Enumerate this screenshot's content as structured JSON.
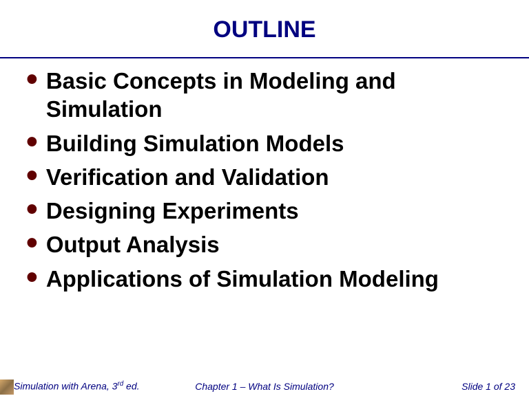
{
  "title": {
    "text": "OUTLINE",
    "color": "#000080",
    "fontSize": 34
  },
  "divider": {
    "color": "#000080"
  },
  "bullets": {
    "color": "#000000",
    "bulletColor": "#600000",
    "fontSize": 33,
    "items": [
      "Basic Concepts in Modeling and Simulation",
      "Building Simulation Models",
      "Verification and Validation",
      "Designing Experiments",
      "Output Analysis",
      "Applications of Simulation Modeling"
    ]
  },
  "footer": {
    "left": {
      "prefix": "Simulation with Arena, 3",
      "sup": "rd",
      "suffix": " ed."
    },
    "center": "Chapter 1 – What Is Simulation?",
    "right": "Slide 1 of 23",
    "color": "#000080",
    "fontSize": 14
  }
}
